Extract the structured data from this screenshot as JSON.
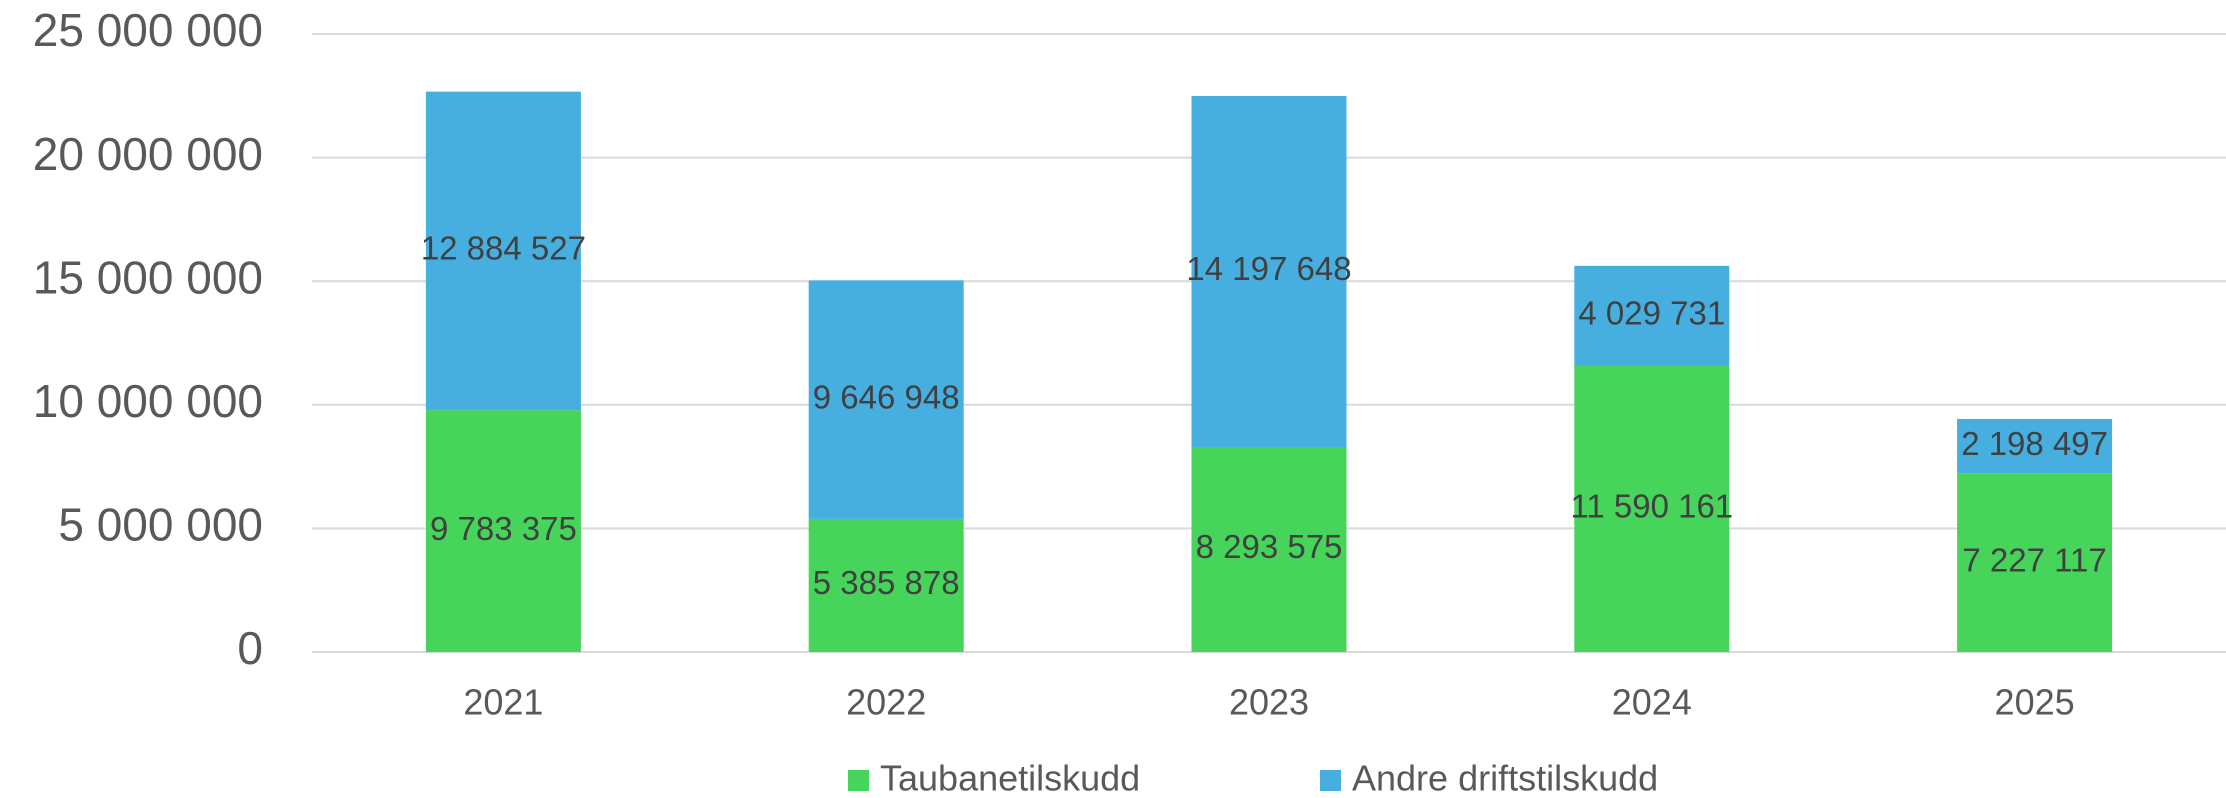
{
  "chart_data": {
    "type": "stacked_bar",
    "categories": [
      "2021",
      "2022",
      "2023",
      "2024",
      "2025"
    ],
    "series": [
      {
        "name": "Taubanetilskudd",
        "color": "#46d45a",
        "values": [
          9783375,
          5385878,
          8293575,
          11590161,
          7227117
        ],
        "value_labels": [
          "9 783 375",
          "5 385 878",
          "8 293 575",
          "11 590 161",
          "7 227 117"
        ]
      },
      {
        "name": "Andre driftstilskudd",
        "color": "#47afe0",
        "values": [
          12884527,
          9646948,
          14197648,
          4029731,
          2198497
        ],
        "value_labels": [
          "12 884 527",
          "9 646 948",
          "14 197 648",
          "4 029 731",
          "2 198 497"
        ]
      }
    ],
    "ylim": [
      0,
      25000000
    ],
    "yticks": [
      0,
      {
        "value": 5000000,
        "label": "5 000 000"
      },
      {
        "value": 10000000,
        "label": "10 000 000"
      },
      {
        "value": 15000000,
        "label": "15 000 000"
      },
      {
        "value": 20000000,
        "label": "20 000 000"
      },
      {
        "value": 25000000,
        "label": "25 000 000"
      }
    ],
    "grid": true,
    "legend": "bottom"
  }
}
